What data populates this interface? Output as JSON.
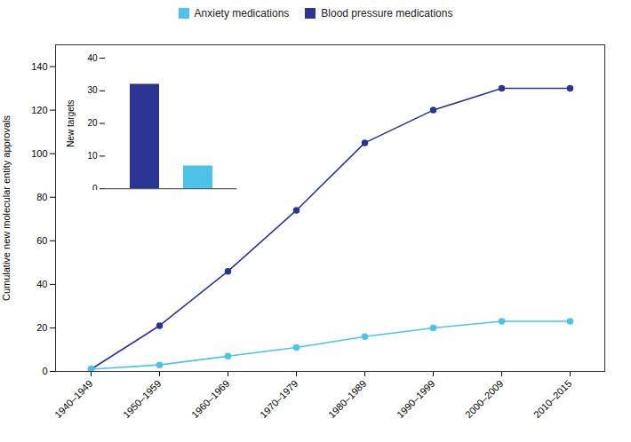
{
  "chart_data": [
    {
      "type": "line",
      "categories": [
        "1940–1949",
        "1950–1959",
        "1960–1969",
        "1970–1979",
        "1980–1989",
        "1990–1999",
        "2000–2009",
        "2010–2015"
      ],
      "series": [
        {
          "name": "Blood pressure medications",
          "color": "#2b3594",
          "marker": "circle",
          "values": [
            1,
            21,
            46,
            74,
            105,
            120,
            130,
            130
          ]
        },
        {
          "name": "Anxiety medications",
          "color": "#4dc3e8",
          "marker": "circle",
          "values": [
            1,
            3,
            7,
            11,
            16,
            20,
            23,
            23
          ]
        }
      ],
      "ylabel": "Cumulative new molecular entity approvals",
      "ylim": [
        0,
        150
      ],
      "yticks": [
        0,
        20,
        40,
        60,
        80,
        100,
        120,
        140
      ],
      "grid": false,
      "legend": "upper center"
    },
    {
      "type": "bar",
      "categories": [
        null,
        null
      ],
      "values": [
        32,
        7
      ],
      "colors": [
        "#2b3594",
        "#4dc3e8"
      ],
      "ylabel": "New targets",
      "ylim": [
        0,
        40
      ],
      "yticks": [
        0,
        10,
        20,
        30,
        40
      ],
      "grid": false,
      "tick_labels": "y"
    }
  ]
}
